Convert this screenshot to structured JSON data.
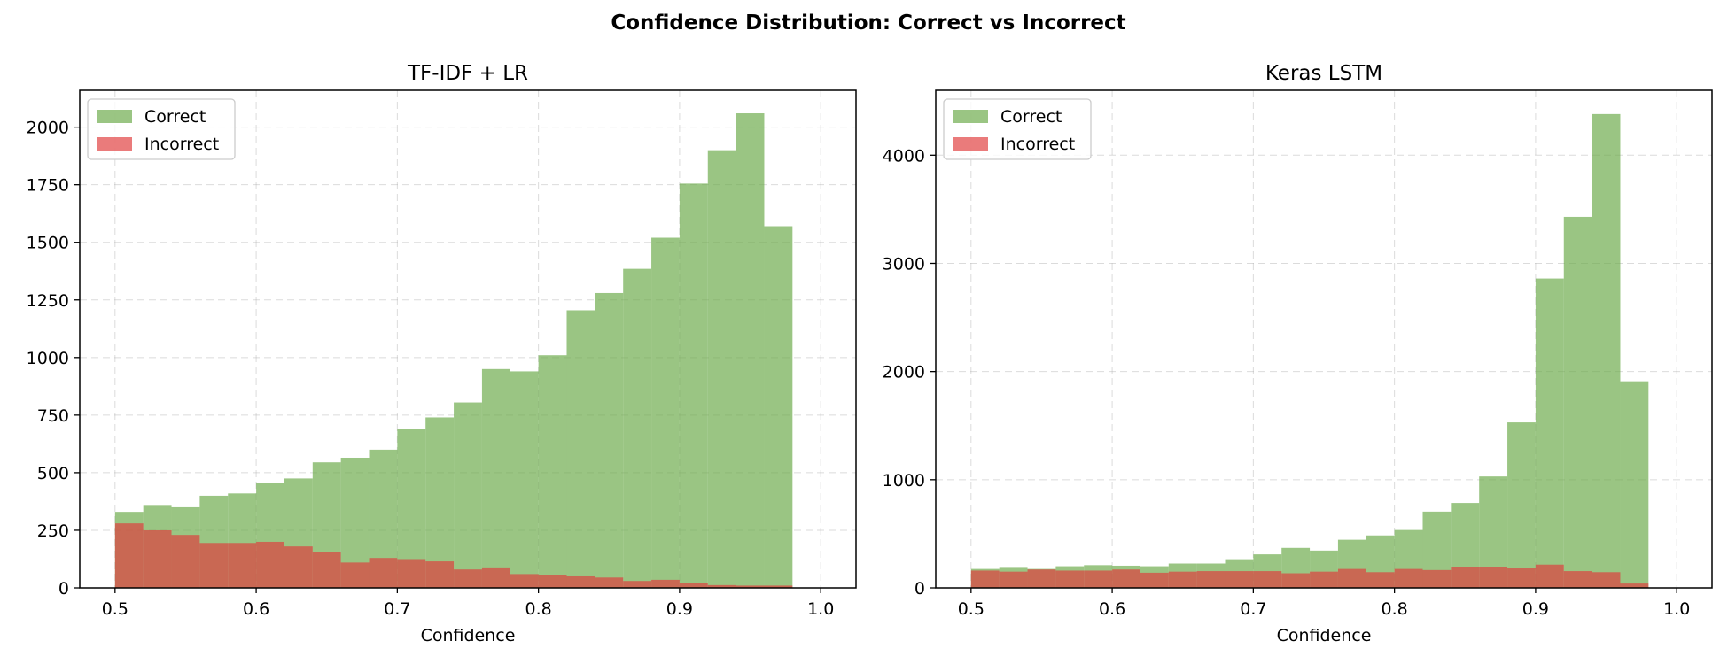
{
  "figure": {
    "suptitle": "Confidence Distribution: Correct vs Incorrect"
  },
  "colors": {
    "correct": "#6aaa48",
    "incorrect": "#e03c3c",
    "correct_alpha": 0.68,
    "incorrect_alpha": 0.68
  },
  "chart_data": [
    {
      "type": "histogram",
      "title": "TF-IDF + LR",
      "xlabel": "Confidence",
      "ylabel": "",
      "xlim": [
        0.475,
        1.025
      ],
      "ylim": [
        0,
        2160
      ],
      "xticks": [
        0.5,
        0.6,
        0.7,
        0.8,
        0.9,
        1.0
      ],
      "xtick_labels": [
        "0.5",
        "0.6",
        "0.7",
        "0.8",
        "0.9",
        "1.0"
      ],
      "yticks": [
        0,
        250,
        500,
        750,
        1000,
        1250,
        1500,
        1750,
        2000
      ],
      "ytick_labels": [
        "0",
        "250",
        "500",
        "750",
        "1000",
        "1250",
        "1500",
        "1750",
        "2000"
      ],
      "grid": true,
      "legend_position": "upper-left",
      "bin_edges": [
        0.5,
        0.52,
        0.54,
        0.56,
        0.58,
        0.6,
        0.62,
        0.64,
        0.66,
        0.68,
        0.7,
        0.72,
        0.74,
        0.76,
        0.78,
        0.8,
        0.82,
        0.84,
        0.86,
        0.88,
        0.9,
        0.92,
        0.94,
        0.96,
        0.98,
        1.0
      ],
      "series": [
        {
          "name": "Correct",
          "values": [
            330,
            360,
            350,
            400,
            410,
            455,
            475,
            545,
            565,
            600,
            690,
            740,
            805,
            950,
            940,
            1010,
            1205,
            1280,
            1385,
            1520,
            1755,
            1900,
            2060,
            1570,
            0
          ]
        },
        {
          "name": "Incorrect",
          "values": [
            280,
            250,
            230,
            195,
            195,
            200,
            180,
            155,
            110,
            130,
            125,
            115,
            80,
            85,
            60,
            55,
            50,
            45,
            30,
            35,
            20,
            12,
            10,
            10,
            0
          ]
        }
      ]
    },
    {
      "type": "histogram",
      "title": "Keras LSTM",
      "xlabel": "Confidence",
      "ylabel": "",
      "xlim": [
        0.475,
        1.025
      ],
      "ylim": [
        0,
        4600
      ],
      "xticks": [
        0.5,
        0.6,
        0.7,
        0.8,
        0.9,
        1.0
      ],
      "xtick_labels": [
        "0.5",
        "0.6",
        "0.7",
        "0.8",
        "0.9",
        "1.0"
      ],
      "yticks": [
        0,
        1000,
        2000,
        3000,
        4000
      ],
      "ytick_labels": [
        "0",
        "1000",
        "2000",
        "3000",
        "4000"
      ],
      "grid": true,
      "legend_position": "upper-left",
      "bin_edges": [
        0.5,
        0.52,
        0.54,
        0.56,
        0.58,
        0.6,
        0.62,
        0.64,
        0.66,
        0.68,
        0.7,
        0.72,
        0.74,
        0.76,
        0.78,
        0.8,
        0.82,
        0.84,
        0.86,
        0.88,
        0.9,
        0.92,
        0.94,
        0.96,
        0.98,
        1.0
      ],
      "series": [
        {
          "name": "Correct",
          "values": [
            175,
            185,
            175,
            200,
            210,
            205,
            200,
            225,
            225,
            265,
            310,
            370,
            345,
            445,
            485,
            535,
            705,
            785,
            1030,
            1530,
            2860,
            3430,
            4380,
            1910,
            0
          ]
        },
        {
          "name": "Incorrect",
          "values": [
            160,
            150,
            170,
            160,
            160,
            170,
            140,
            150,
            155,
            155,
            155,
            135,
            150,
            175,
            145,
            175,
            165,
            190,
            190,
            180,
            215,
            155,
            145,
            40,
            0
          ]
        }
      ]
    }
  ]
}
